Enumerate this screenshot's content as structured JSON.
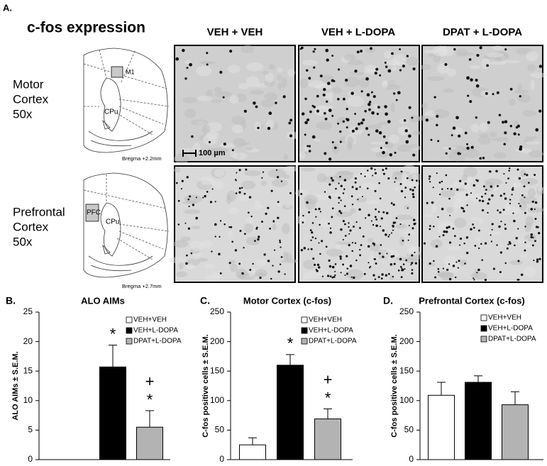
{
  "panel_a": {
    "label": "A.",
    "title": "c-fos expression",
    "columns": [
      "VEH + VEH",
      "VEH + L-DOPA",
      "DPAT + L-DOPA"
    ],
    "rows": [
      {
        "label": [
          "Motor",
          "Cortex",
          "50x"
        ],
        "region": "M1",
        "structure": "CPu",
        "bregma": "Bregma +2.2mm"
      },
      {
        "label": [
          "Prefrontal",
          "Cortex",
          "50x"
        ],
        "region": "PFC",
        "structure": "CPu",
        "bregma": "Bregma +2.7mm"
      }
    ],
    "scale_bar": "100 µm"
  },
  "chart_data": [
    {
      "type": "bar",
      "panel": "B.",
      "title": "ALO AIMs",
      "y_label": "ALO AIMs ± S.E.M.",
      "categories": [
        "VEH+VEH",
        "VEH+L-DOPA",
        "DPAT+L-DOPA"
      ],
      "colors": [
        "#ffffff",
        "#000000",
        "#b3b3b3"
      ],
      "values": [
        0,
        15.7,
        5.5
      ],
      "errors": [
        0,
        3.7,
        2.8
      ],
      "ylim": [
        0,
        25
      ],
      "yticks": [
        0,
        5,
        10,
        15,
        20,
        25
      ],
      "annotations": [
        {
          "category": "VEH+L-DOPA",
          "texts": [
            "*"
          ]
        },
        {
          "category": "DPAT+L-DOPA",
          "texts": [
            "+",
            "*"
          ]
        }
      ]
    },
    {
      "type": "bar",
      "panel": "C.",
      "title": "Motor Cortex (c-fos)",
      "y_label": "C-fos positive cells ± S.E.M.",
      "categories": [
        "VEH+VEH",
        "VEH+L-DOPA",
        "DPAT+L-DOPA"
      ],
      "colors": [
        "#ffffff",
        "#000000",
        "#b3b3b3"
      ],
      "values": [
        25,
        160,
        69
      ],
      "errors": [
        12,
        18,
        17
      ],
      "ylim": [
        0,
        250
      ],
      "yticks": [
        0,
        50,
        100,
        150,
        200,
        250
      ],
      "annotations": [
        {
          "category": "VEH+L-DOPA",
          "texts": [
            "*"
          ]
        },
        {
          "category": "DPAT+L-DOPA",
          "texts": [
            "+",
            "*"
          ]
        }
      ]
    },
    {
      "type": "bar",
      "panel": "D.",
      "title": "Prefrontal Cortex (c-fos)",
      "y_label": "C-fos positive cells ± S.E.M.",
      "categories": [
        "VEH+VEH",
        "VEH+L-DOPA",
        "DPAT+L-DOPA"
      ],
      "colors": [
        "#ffffff",
        "#000000",
        "#b3b3b3"
      ],
      "values": [
        109,
        131,
        93
      ],
      "errors": [
        22,
        11,
        22
      ],
      "ylim": [
        0,
        250
      ],
      "yticks": [
        0,
        50,
        100,
        150,
        200,
        250
      ],
      "annotations": []
    }
  ]
}
